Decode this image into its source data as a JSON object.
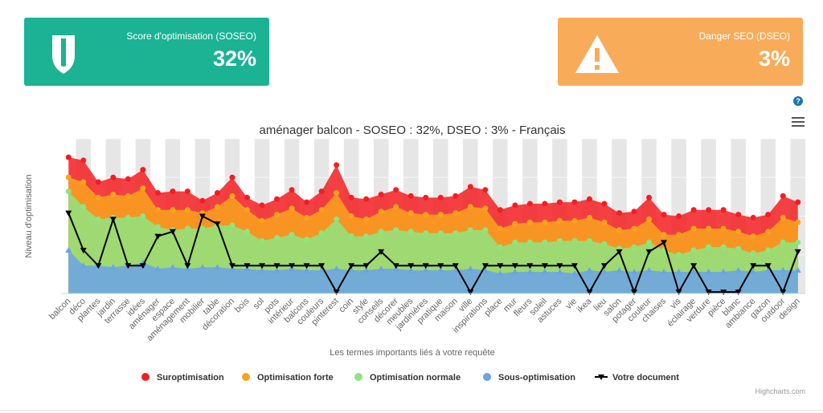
{
  "cards": {
    "soseo": {
      "title": "Score d'optimisation (SOSEO)",
      "value": "32%",
      "color": "#1bb394",
      "icon": "shield-icon"
    },
    "dseo": {
      "title": "Danger SEO (DSEO)",
      "value": "3%",
      "color": "#f8ac59",
      "icon": "warning-icon"
    }
  },
  "help_label": "?",
  "chart_data": {
    "type": "area",
    "title": "aménager balcon - SOSEO : 32%, DSEO : 3% - Français",
    "xlabel": "Les termes importants liés à votre requête",
    "ylabel": "Niveau d'optimisation",
    "ylim": [
      0,
      100
    ],
    "grid": true,
    "legend_position": "bottom-center",
    "credits": "Highcharts.com",
    "categories": [
      "balcon",
      "déco",
      "plantes",
      "jardin",
      "terrasse",
      "idées",
      "aménager",
      "espace",
      "aménagement",
      "mobilier",
      "table",
      "décoration",
      "bois",
      "sol",
      "pots",
      "intérieur",
      "balcons",
      "couleurs",
      "pinterest",
      "coin",
      "style",
      "conseils",
      "décorer",
      "meubles",
      "jardinières",
      "pratique",
      "maison",
      "ville",
      "inspirations",
      "place",
      "mur",
      "fleurs",
      "soleil",
      "astuces",
      "vie",
      "ikea",
      "lieu",
      "salon",
      "potager",
      "couleur",
      "chaises",
      "vis",
      "éclairage",
      "verdure",
      "pièce",
      "blanc",
      "ambiance",
      "gazon",
      "outdoor",
      "design"
    ],
    "series": [
      {
        "name": "Suroptimisation",
        "color": "#f21f22",
        "values": [
          88,
          86,
          72,
          75,
          74,
          80,
          65,
          66,
          66,
          60,
          65,
          75,
          62,
          57,
          61,
          67,
          59,
          66,
          83,
          62,
          61,
          64,
          67,
          63,
          62,
          62,
          63,
          69,
          67,
          54,
          57,
          58,
          58,
          59,
          59,
          61,
          58,
          52,
          53,
          62,
          51,
          50,
          54,
          54,
          54,
          51,
          49,
          51,
          63,
          59
        ]
      },
      {
        "name": "Optimisation forte",
        "color": "#f9a31d",
        "values": [
          75,
          72,
          62,
          64,
          63,
          68,
          54,
          54,
          54,
          52,
          56,
          63,
          54,
          47,
          51,
          55,
          49,
          54,
          65,
          50,
          48,
          53,
          56,
          52,
          51,
          51,
          52,
          56,
          55,
          42,
          45,
          46,
          46,
          47,
          47,
          49,
          46,
          41,
          42,
          48,
          38,
          38,
          42,
          42,
          42,
          40,
          37,
          40,
          49,
          46
        ]
      },
      {
        "name": "Optimisation normale",
        "color": "#8ee57f",
        "values": [
          66,
          56,
          48,
          49,
          49,
          50,
          43,
          41,
          42,
          42,
          44,
          44,
          40,
          34,
          36,
          38,
          35,
          39,
          48,
          37,
          37,
          40,
          41,
          40,
          39,
          39,
          39,
          41,
          41,
          30,
          33,
          33,
          33,
          34,
          34,
          34,
          32,
          29,
          30,
          33,
          28,
          25,
          28,
          30,
          30,
          29,
          26,
          28,
          33,
          33
        ]
      },
      {
        "name": "Sous-optimisation",
        "color": "#6aa3e8",
        "values": [
          28,
          18,
          18,
          17,
          18,
          20,
          16,
          17,
          16,
          17,
          17,
          16,
          16,
          15,
          15,
          16,
          15,
          15,
          16,
          15,
          15,
          16,
          16,
          15,
          15,
          15,
          15,
          16,
          15,
          13,
          14,
          14,
          14,
          14,
          13,
          15,
          14,
          15,
          14,
          15,
          14,
          14,
          14,
          14,
          14,
          15,
          14,
          15,
          15,
          15
        ]
      },
      {
        "name": "Votre document",
        "color": "#000000",
        "values": [
          52,
          28,
          18,
          48,
          18,
          18,
          37,
          40,
          18,
          50,
          45,
          18,
          18,
          18,
          18,
          18,
          18,
          18,
          1,
          18,
          18,
          27,
          18,
          18,
          18,
          18,
          18,
          1,
          18,
          18,
          18,
          18,
          18,
          18,
          18,
          1,
          18,
          27,
          1,
          27,
          33,
          1,
          18,
          1,
          1,
          1,
          18,
          18,
          1,
          27
        ]
      }
    ]
  }
}
